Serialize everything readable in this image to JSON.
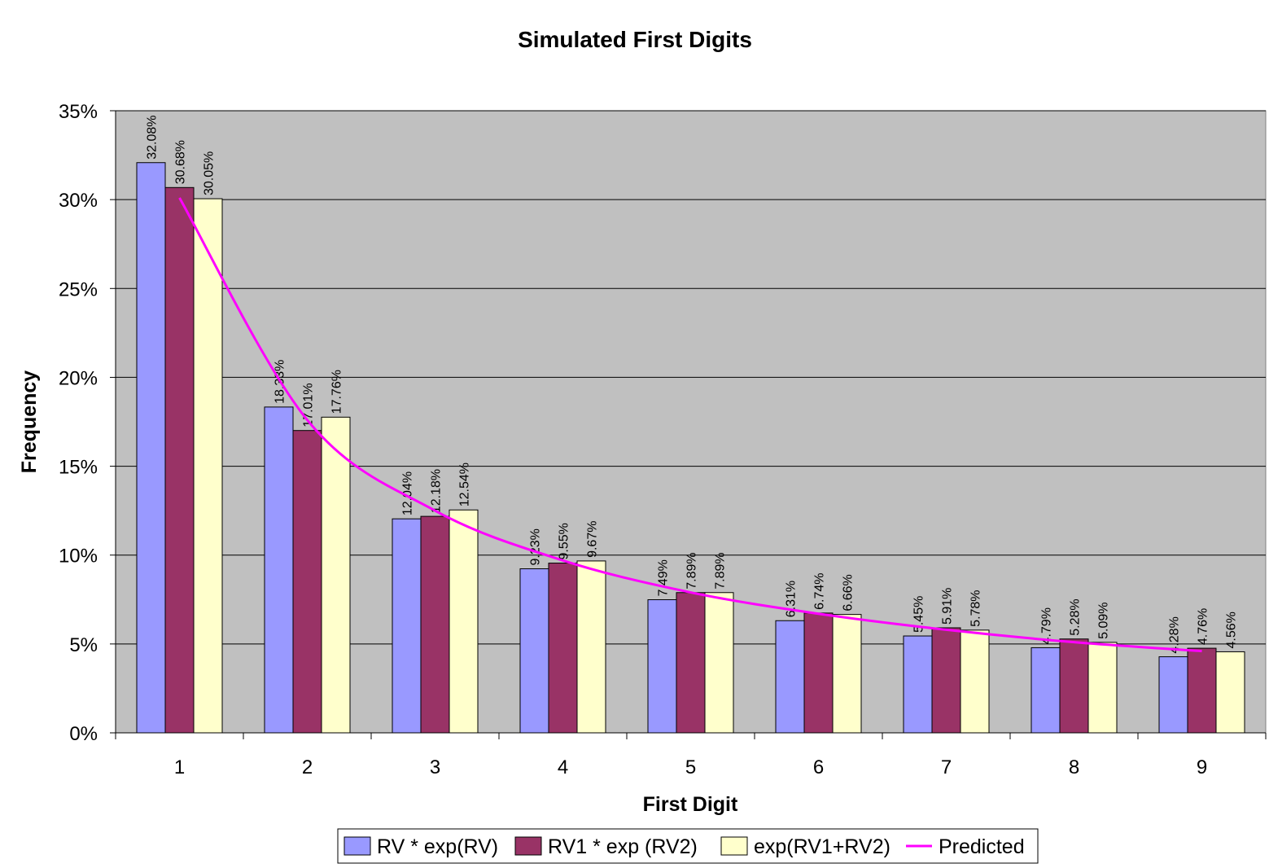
{
  "chart_data": {
    "type": "bar",
    "title": "Simulated First Digits",
    "xlabel": "First Digit",
    "ylabel": "Frequency",
    "categories": [
      "1",
      "2",
      "3",
      "4",
      "5",
      "6",
      "7",
      "8",
      "9"
    ],
    "ylim": [
      0,
      35
    ],
    "yticks": [
      "0%",
      "5%",
      "10%",
      "15%",
      "20%",
      "25%",
      "30%",
      "35%"
    ],
    "grid": true,
    "legend_position": "bottom",
    "series": [
      {
        "name": "RV * exp(RV)",
        "color": "#9999ff",
        "values": [
          32.08,
          18.33,
          12.04,
          9.23,
          7.49,
          6.31,
          5.45,
          4.79,
          4.28
        ],
        "labels": [
          "32.08%",
          "18.33%",
          "12.04%",
          "9.23%",
          "7.49%",
          "6.31%",
          "5.45%",
          "4.79%",
          "4.28%"
        ]
      },
      {
        "name": "RV1 * exp (RV2)",
        "color": "#993366",
        "values": [
          30.68,
          17.01,
          12.18,
          9.55,
          7.89,
          6.74,
          5.91,
          5.28,
          4.76
        ],
        "labels": [
          "30.68%",
          "17.01%",
          "12.18%",
          "9.55%",
          "7.89%",
          "6.74%",
          "5.91%",
          "5.28%",
          "4.76%"
        ]
      },
      {
        "name": "exp(RV1+RV2)",
        "color": "#ffffcc",
        "values": [
          30.05,
          17.76,
          12.54,
          9.67,
          7.89,
          6.66,
          5.78,
          5.09,
          4.56
        ],
        "labels": [
          "30.05%",
          "17.76%",
          "12.54%",
          "9.67%",
          "7.89%",
          "6.66%",
          "5.78%",
          "5.09%",
          "4.56%"
        ]
      }
    ],
    "line_series": {
      "name": "Predicted",
      "color": "#ff00ff",
      "type": "line",
      "values": [
        30.1,
        17.6,
        12.5,
        9.7,
        7.9,
        6.7,
        5.8,
        5.1,
        4.6
      ]
    },
    "plot_background": "#c0c0c0"
  }
}
